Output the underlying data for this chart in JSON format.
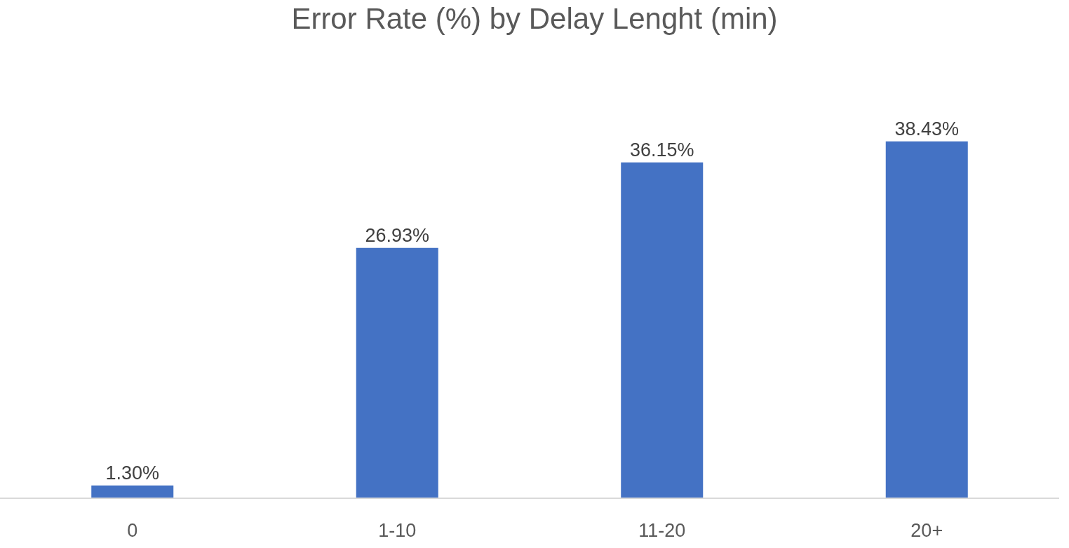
{
  "chart_data": {
    "type": "bar",
    "title": "Error Rate (%) by Delay Lenght (min)",
    "categories": [
      "0",
      "1-10",
      "11-20",
      "20+"
    ],
    "values": [
      1.3,
      26.93,
      36.15,
      38.43
    ],
    "value_labels": [
      "1.30%",
      "26.93%",
      "36.15%",
      "38.43%"
    ],
    "color": "#4472c4"
  }
}
